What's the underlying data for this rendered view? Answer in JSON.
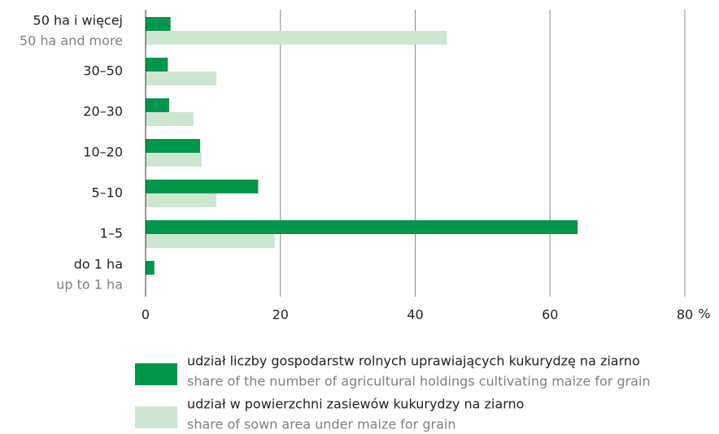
{
  "chart_data": {
    "type": "bar",
    "orientation": "horizontal",
    "categories": [
      "50 ha i więcej",
      "30–50",
      "20–30",
      "10–20",
      "5–10",
      "1–5",
      "do 1 ha"
    ],
    "categories_en": [
      "50 ha and more",
      null,
      null,
      null,
      null,
      null,
      "up to 1 ha"
    ],
    "series": [
      {
        "name": "udział liczby gospodarstw rolnych uprawiających kukurydzę na ziarno",
        "name_en": "share of the number of agricultural holdings cultivating maize for grain",
        "color": "#00964b",
        "values": [
          3.7,
          3.3,
          3.5,
          8.1,
          16.7,
          64.1,
          1.3
        ]
      },
      {
        "name": "udział w powierzchni zasiewów kukurydzy na ziarno",
        "name_en": "share of sown area under maize for grain",
        "color": "#cce6d2",
        "values": [
          44.7,
          10.5,
          7.1,
          8.3,
          10.5,
          19.2,
          0
        ]
      }
    ],
    "xlim": [
      0,
      80
    ],
    "xticks": [
      0,
      20,
      40,
      60,
      80
    ],
    "x_unit": "%",
    "grid": true
  }
}
